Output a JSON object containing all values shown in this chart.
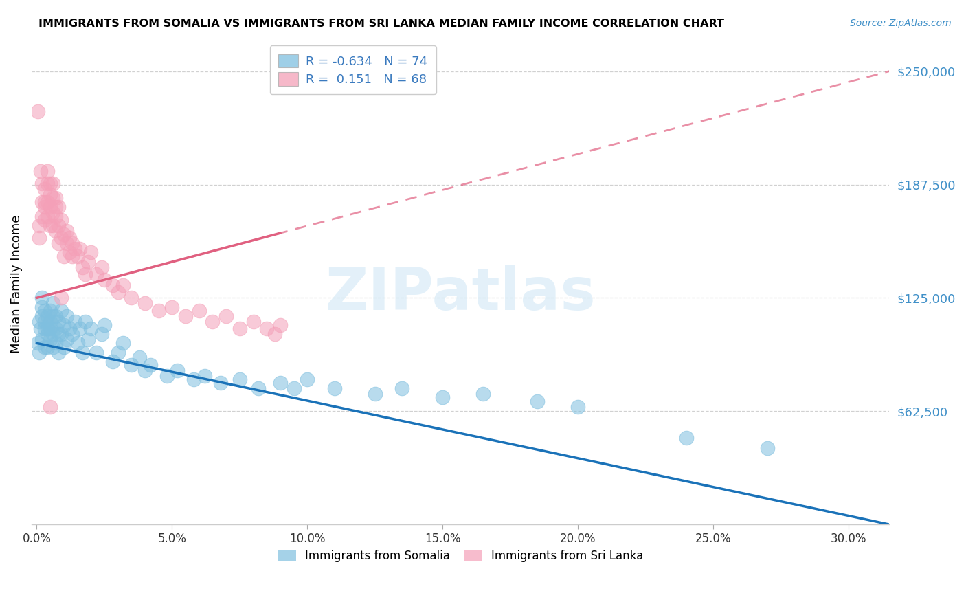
{
  "title": "IMMIGRANTS FROM SOMALIA VS IMMIGRANTS FROM SRI LANKA MEDIAN FAMILY INCOME CORRELATION CHART",
  "source": "Source: ZipAtlas.com",
  "ylabel": "Median Family Income",
  "xlabel_ticks": [
    "0.0%",
    "5.0%",
    "10.0%",
    "15.0%",
    "20.0%",
    "25.0%",
    "30.0%"
  ],
  "xlabel_vals": [
    0.0,
    0.05,
    0.1,
    0.15,
    0.2,
    0.25,
    0.3
  ],
  "ytick_labels": [
    "$62,500",
    "$125,000",
    "$187,500",
    "$250,000"
  ],
  "ytick_vals": [
    62500,
    125000,
    187500,
    250000
  ],
  "ylim": [
    0,
    265000
  ],
  "xlim": [
    -0.002,
    0.315
  ],
  "somalia_color": "#7fbfdf",
  "srilanka_color": "#f4a0b8",
  "somalia_line_color": "#1a72b8",
  "srilanka_line_color": "#e06080",
  "somalia_R": -0.634,
  "somalia_N": 74,
  "srilanka_R": 0.151,
  "srilanka_N": 68,
  "legend_somalia": "Immigrants from Somalia",
  "legend_srilanka": "Immigrants from Sri Lanka",
  "watermark": "ZIPatlas",
  "background_color": "#ffffff",
  "grid_color": "#cccccc",
  "somalia_scatter_x": [
    0.0005,
    0.001,
    0.001,
    0.0015,
    0.002,
    0.002,
    0.002,
    0.002,
    0.003,
    0.003,
    0.003,
    0.003,
    0.004,
    0.004,
    0.004,
    0.004,
    0.005,
    0.005,
    0.005,
    0.005,
    0.006,
    0.006,
    0.006,
    0.006,
    0.007,
    0.007,
    0.007,
    0.008,
    0.008,
    0.008,
    0.009,
    0.009,
    0.01,
    0.01,
    0.011,
    0.011,
    0.012,
    0.013,
    0.014,
    0.015,
    0.016,
    0.017,
    0.018,
    0.019,
    0.02,
    0.022,
    0.024,
    0.025,
    0.028,
    0.03,
    0.032,
    0.035,
    0.038,
    0.04,
    0.042,
    0.048,
    0.052,
    0.058,
    0.062,
    0.068,
    0.075,
    0.082,
    0.09,
    0.095,
    0.1,
    0.11,
    0.125,
    0.135,
    0.15,
    0.165,
    0.185,
    0.2,
    0.24,
    0.27
  ],
  "somalia_scatter_y": [
    100000,
    112000,
    95000,
    108000,
    115000,
    102000,
    120000,
    125000,
    108000,
    98000,
    118000,
    112000,
    105000,
    115000,
    98000,
    108000,
    102000,
    118000,
    108000,
    112000,
    105000,
    115000,
    98000,
    122000,
    108000,
    115000,
    100000,
    112000,
    105000,
    95000,
    118000,
    105000,
    110000,
    98000,
    115000,
    102000,
    108000,
    105000,
    112000,
    100000,
    108000,
    95000,
    112000,
    102000,
    108000,
    95000,
    105000,
    110000,
    90000,
    95000,
    100000,
    88000,
    92000,
    85000,
    88000,
    82000,
    85000,
    80000,
    82000,
    78000,
    80000,
    75000,
    78000,
    75000,
    80000,
    75000,
    72000,
    75000,
    70000,
    72000,
    68000,
    65000,
    48000,
    42000
  ],
  "srilanka_scatter_x": [
    0.0005,
    0.001,
    0.001,
    0.0015,
    0.002,
    0.002,
    0.002,
    0.003,
    0.003,
    0.003,
    0.003,
    0.004,
    0.004,
    0.004,
    0.004,
    0.005,
    0.005,
    0.005,
    0.005,
    0.006,
    0.006,
    0.006,
    0.006,
    0.007,
    0.007,
    0.007,
    0.007,
    0.008,
    0.008,
    0.008,
    0.009,
    0.009,
    0.009,
    0.01,
    0.01,
    0.011,
    0.011,
    0.012,
    0.012,
    0.013,
    0.013,
    0.014,
    0.015,
    0.016,
    0.017,
    0.018,
    0.019,
    0.02,
    0.022,
    0.024,
    0.025,
    0.028,
    0.03,
    0.032,
    0.035,
    0.04,
    0.045,
    0.05,
    0.055,
    0.06,
    0.065,
    0.07,
    0.075,
    0.08,
    0.085,
    0.088,
    0.09,
    0.005
  ],
  "srilanka_scatter_y": [
    228000,
    165000,
    158000,
    195000,
    178000,
    170000,
    188000,
    178000,
    185000,
    168000,
    175000,
    188000,
    178000,
    195000,
    170000,
    182000,
    175000,
    188000,
    165000,
    172000,
    180000,
    165000,
    188000,
    175000,
    162000,
    180000,
    170000,
    165000,
    175000,
    155000,
    168000,
    158000,
    125000,
    148000,
    160000,
    155000,
    162000,
    150000,
    158000,
    148000,
    155000,
    152000,
    148000,
    152000,
    142000,
    138000,
    145000,
    150000,
    138000,
    142000,
    135000,
    132000,
    128000,
    132000,
    125000,
    122000,
    118000,
    120000,
    115000,
    118000,
    112000,
    115000,
    108000,
    112000,
    108000,
    105000,
    110000,
    65000
  ]
}
